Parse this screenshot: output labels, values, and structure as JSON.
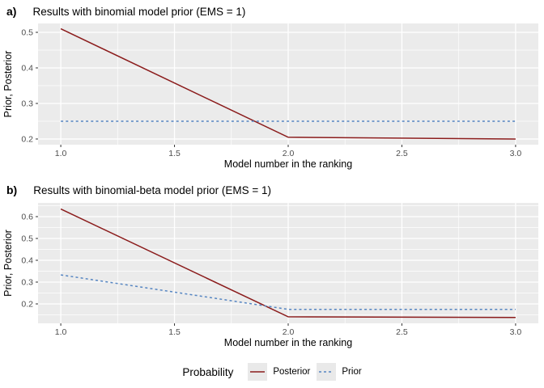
{
  "colors": {
    "posterior": "#8B1C1C",
    "prior": "#5585C2",
    "panel_bg": "#EBEBEB",
    "grid": "#FFFFFF",
    "tick_mark": "#333333",
    "tick_label": "#4D4D4D",
    "axis_title": "#000000",
    "legend_key_bg": "#E9E9E9"
  },
  "legend": {
    "title": "Probability",
    "items": [
      {
        "label": "Posterior",
        "style": "solid",
        "color_key": "posterior"
      },
      {
        "label": "Prior",
        "style": "dashed",
        "color_key": "prior"
      }
    ]
  },
  "chart_data": [
    {
      "type": "line",
      "tag": "a)",
      "title": "Results with binomial model prior (EMS = 1)",
      "xlabel": "Model number in the ranking",
      "ylabel": "Prior, Posterior",
      "x": [
        1,
        2,
        3
      ],
      "series": [
        {
          "name": "Posterior",
          "style": "solid",
          "color_key": "posterior",
          "values": [
            0.51,
            0.205,
            0.2
          ]
        },
        {
          "name": "Prior",
          "style": "dashed",
          "color_key": "prior",
          "values": [
            0.25,
            0.25,
            0.25
          ]
        }
      ],
      "xlim": [
        0.9,
        3.1
      ],
      "ylim": [
        0.184,
        0.525
      ],
      "xticks": [
        1.0,
        1.5,
        2.0,
        2.5,
        3.0
      ],
      "xtick_labels": [
        "1.0",
        "1.5",
        "2.0",
        "2.5",
        "3.0"
      ],
      "yticks": [
        0.2,
        0.3,
        0.4,
        0.5
      ],
      "ytick_labels": [
        "0.2",
        "0.3",
        "0.4",
        "0.5"
      ],
      "x_minor": [
        1.25,
        1.75,
        2.25,
        2.75
      ],
      "y_minor": [
        0.25,
        0.35,
        0.45
      ],
      "grid": true,
      "legend_position": "bottom"
    },
    {
      "type": "line",
      "tag": "b)",
      "title": "Results with binomial-beta model prior (EMS = 1)",
      "xlabel": "Model number in the ranking",
      "ylabel": "Prior, Posterior",
      "x": [
        1,
        2,
        3
      ],
      "series": [
        {
          "name": "Posterior",
          "style": "solid",
          "color_key": "posterior",
          "values": [
            0.635,
            0.141,
            0.138
          ]
        },
        {
          "name": "Prior",
          "style": "dashed",
          "color_key": "prior",
          "values": [
            0.333,
            0.175,
            0.175
          ]
        }
      ],
      "xlim": [
        0.9,
        3.1
      ],
      "ylim": [
        0.111,
        0.663
      ],
      "xticks": [
        1.0,
        1.5,
        2.0,
        2.5,
        3.0
      ],
      "xtick_labels": [
        "1.0",
        "1.5",
        "2.0",
        "2.5",
        "3.0"
      ],
      "yticks": [
        0.2,
        0.3,
        0.4,
        0.5,
        0.6
      ],
      "ytick_labels": [
        "0.2",
        "0.3",
        "0.4",
        "0.5",
        "0.6"
      ],
      "x_minor": [
        1.25,
        1.75,
        2.25,
        2.75
      ],
      "y_minor": [
        0.15,
        0.25,
        0.35,
        0.45,
        0.55,
        0.65
      ],
      "grid": true,
      "legend_position": "bottom"
    }
  ]
}
